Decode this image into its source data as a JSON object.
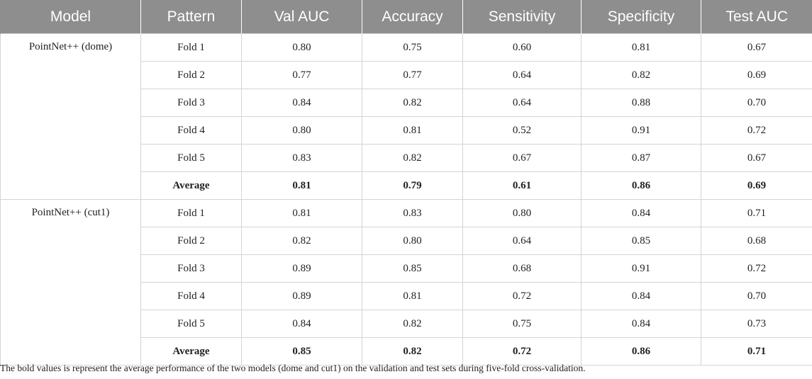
{
  "headers": [
    "Model",
    "Pattern",
    "Val AUC",
    "Accuracy",
    "Sensitivity",
    "Specificity",
    "Test AUC"
  ],
  "groups": [
    {
      "model": "PointNet++ (dome)",
      "rows": [
        {
          "pattern": "Fold 1",
          "val_auc": "0.80",
          "accuracy": "0.75",
          "sensitivity": "0.60",
          "specificity": "0.81",
          "test_auc": "0.67"
        },
        {
          "pattern": "Fold 2",
          "val_auc": "0.77",
          "accuracy": "0.77",
          "sensitivity": "0.64",
          "specificity": "0.82",
          "test_auc": "0.69"
        },
        {
          "pattern": "Fold 3",
          "val_auc": "0.84",
          "accuracy": "0.82",
          "sensitivity": "0.64",
          "specificity": "0.88",
          "test_auc": "0.70"
        },
        {
          "pattern": "Fold 4",
          "val_auc": "0.80",
          "accuracy": "0.81",
          "sensitivity": "0.52",
          "specificity": "0.91",
          "test_auc": "0.72"
        },
        {
          "pattern": "Fold 5",
          "val_auc": "0.83",
          "accuracy": "0.82",
          "sensitivity": "0.67",
          "specificity": "0.87",
          "test_auc": "0.67"
        },
        {
          "pattern": "Average",
          "val_auc": "0.81",
          "accuracy": "0.79",
          "sensitivity": "0.61",
          "specificity": "0.86",
          "test_auc": "0.69"
        }
      ]
    },
    {
      "model": "PointNet++ (cut1)",
      "rows": [
        {
          "pattern": "Fold 1",
          "val_auc": "0.81",
          "accuracy": "0.83",
          "sensitivity": "0.80",
          "specificity": "0.84",
          "test_auc": "0.71"
        },
        {
          "pattern": "Fold 2",
          "val_auc": "0.82",
          "accuracy": "0.80",
          "sensitivity": "0.64",
          "specificity": "0.85",
          "test_auc": "0.68"
        },
        {
          "pattern": "Fold 3",
          "val_auc": "0.89",
          "accuracy": "0.85",
          "sensitivity": "0.68",
          "specificity": "0.91",
          "test_auc": "0.72"
        },
        {
          "pattern": "Fold 4",
          "val_auc": "0.89",
          "accuracy": "0.81",
          "sensitivity": "0.72",
          "specificity": "0.84",
          "test_auc": "0.70"
        },
        {
          "pattern": "Fold 5",
          "val_auc": "0.84",
          "accuracy": "0.82",
          "sensitivity": "0.75",
          "specificity": "0.84",
          "test_auc": "0.73"
        },
        {
          "pattern": "Average",
          "val_auc": "0.85",
          "accuracy": "0.82",
          "sensitivity": "0.72",
          "specificity": "0.86",
          "test_auc": "0.71"
        }
      ]
    }
  ],
  "footnote": "The bold values is represent the average performance of the two models (dome and cut1) on the validation and test sets during five-fold cross-validation."
}
